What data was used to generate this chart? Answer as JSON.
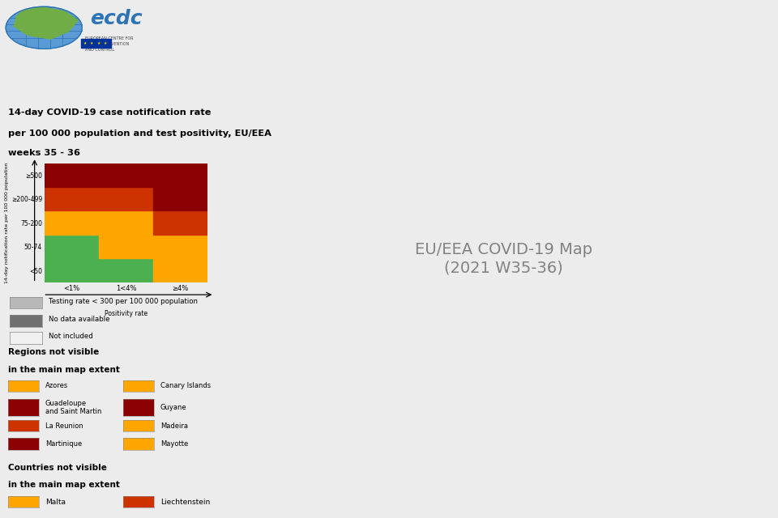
{
  "title_lines": [
    "14-day COVID-19 case notification rate",
    "per 100 000 population and test positivity, EU/EEA",
    "weeks 35 - 36"
  ],
  "background_color": "#ececec",
  "map_bg_color": "#d8d8d8",
  "matrix_colors": [
    [
      "#8B0000",
      "#8B0000",
      "#8B0000"
    ],
    [
      "#CC3300",
      "#CC3300",
      "#8B0000"
    ],
    [
      "#FFA500",
      "#FFA500",
      "#CC3300"
    ],
    [
      "#4CAF50",
      "#FFA500",
      "#FFA500"
    ],
    [
      "#4CAF50",
      "#4CAF50",
      "#FFA500"
    ]
  ],
  "matrix_row_labels": [
    "≥500",
    "≥200-499",
    "75-200",
    "50-74",
    "<50"
  ],
  "matrix_col_labels": [
    "<1%",
    "1<4%",
    "≥4%"
  ],
  "matrix_xlabel": "Positivity rate",
  "matrix_ylabel": "14-day notification rate per 100 000 population",
  "legend_items": [
    {
      "color": "#b8b8b8",
      "label": "Testing rate < 300 per 100 000 population"
    },
    {
      "color": "#707070",
      "label": "No data available"
    },
    {
      "color": "#f0f0f0",
      "label": "Not included"
    }
  ],
  "regions_left": [
    {
      "color": "#FFA500",
      "label": "Azores"
    },
    {
      "color": "#8B0000",
      "label": "Guadeloupe\nand Saint Martin"
    },
    {
      "color": "#CC3300",
      "label": "La Reunion"
    },
    {
      "color": "#8B0000",
      "label": "Martinique"
    }
  ],
  "regions_right": [
    {
      "color": "#FFA500",
      "label": "Canary Islands"
    },
    {
      "color": "#8B0000",
      "label": "Guyane"
    },
    {
      "color": "#FFA500",
      "label": "Madeira"
    },
    {
      "color": "#FFA500",
      "label": "Mayotte"
    }
  ],
  "countries_not_visible": [
    {
      "color": "#FFA500",
      "label": "Malta"
    },
    {
      "color": "#CC3300",
      "label": "Liechtenstein"
    }
  ],
  "country_colors": {
    "Iceland": "#FFA500",
    "Norway": "#FFA500",
    "Sweden": "#FFA500",
    "Finland": "#FFA500",
    "Estonia": "#CC3300",
    "Latvia": "#CC3300",
    "Lithuania": "#CC3300",
    "Denmark": "#FFA500",
    "Netherlands": "#CC3300",
    "Belgium": "#CC3300",
    "Luxembourg": "#CC3300",
    "Germany": "#CC3300",
    "Poland": "#4CAF50",
    "Czechia": "#CC3300",
    "Czech Republic": "#CC3300",
    "Slovakia": "#FFA500",
    "Austria": "#CC3300",
    "Switzerland": "#CC3300",
    "France": "#CC3300",
    "Spain": "#CC3300",
    "Portugal": "#FFA500",
    "Ireland": "#CC3300",
    "United Kingdom": "#d8d8d8",
    "Italy": "#CC3300",
    "Slovenia": "#FFA500",
    "Croatia": "#CC3300",
    "Hungary": "#4CAF50",
    "Romania": "#CC3300",
    "Bulgaria": "#CC3300",
    "Greece": "#CC3300",
    "Cyprus": "#CC3300",
    "Serbia": "#b8b8b8",
    "North Macedonia": "#b8b8b8",
    "Albania": "#b8b8b8",
    "Bosnia and Herz.": "#b8b8b8",
    "Montenegro": "#b8b8b8",
    "Kosovo": "#b8b8b8",
    "Belarus": "#d8d8d8",
    "Ukraine": "#d8d8d8",
    "Moldova": "#d8d8d8",
    "Russia": "#d8d8d8",
    "Turkey": "#d8d8d8"
  }
}
